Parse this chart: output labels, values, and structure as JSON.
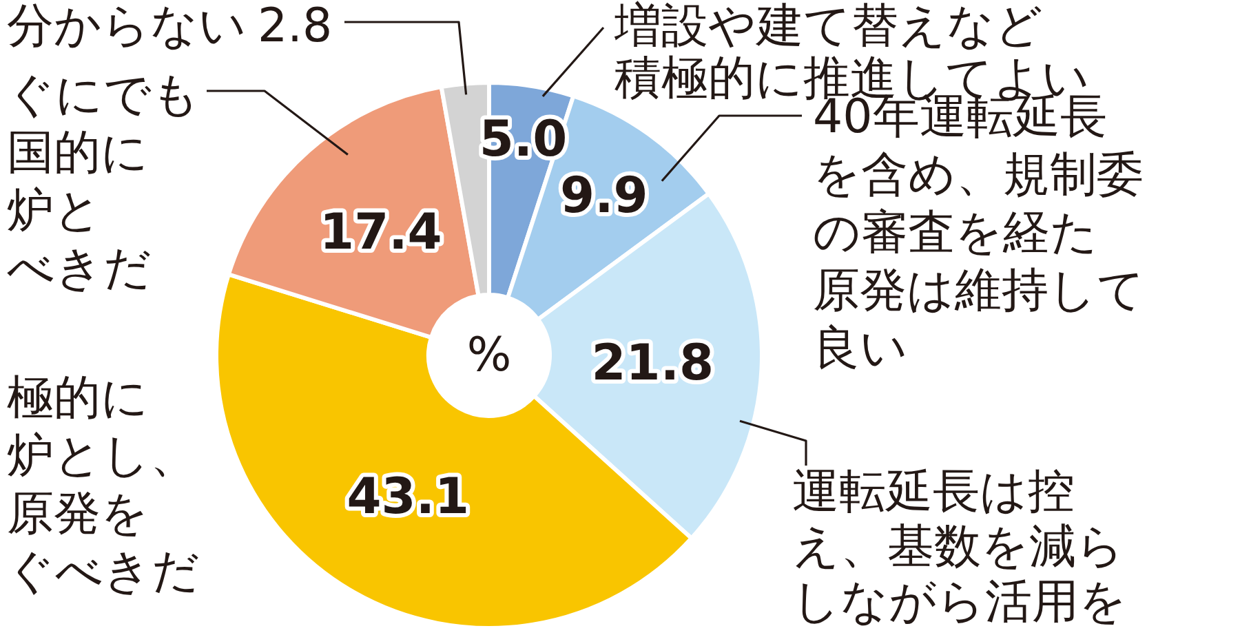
{
  "chart_data": {
    "type": "donut",
    "categories": [
      "増設や建て替えなど積極的に推進してよい",
      "40年運転延長を含め、規制委の審査を経た原発は維持して良い",
      "運転延長は控え、基数を減らしながら活用を",
      "極的に炉とし、原発をぐべきだ",
      "ぐにでも国的に炉とべきだ",
      "分からない"
    ],
    "values": [
      5.0,
      9.9,
      21.8,
      43.1,
      17.4,
      2.8
    ],
    "value_labels": [
      "5.0",
      "9.9",
      "21.8",
      "43.1",
      "17.4",
      "2.8"
    ],
    "colors": [
      "#7ea7d9",
      "#a3cdee",
      "#c9e7f8",
      "#f9c500",
      "#ef9b79",
      "#d3d3d3"
    ],
    "annotations": [
      "%"
    ]
  }
}
